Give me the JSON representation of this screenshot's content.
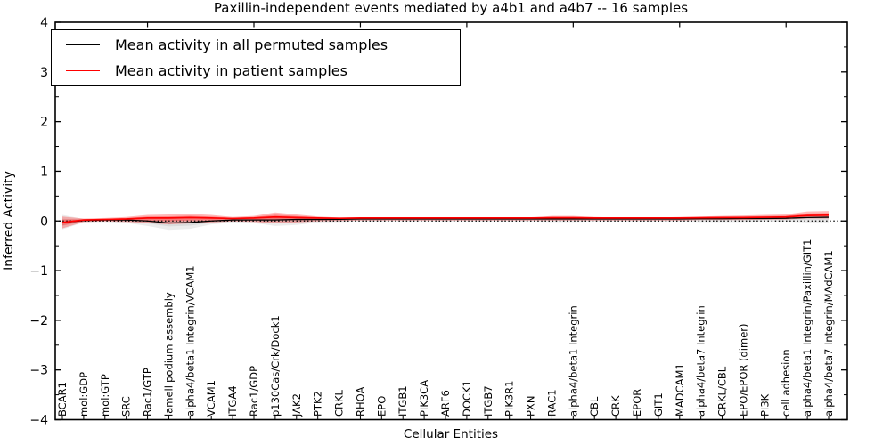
{
  "figure": {
    "title": "Paxillin-independent events mediated by a4b1 and a4b7 -- 16 samples",
    "xlabel": "Cellular Entities",
    "ylabel": "Inferred Activity"
  },
  "legend": {
    "items": [
      {
        "label": "Mean activity in all permuted samples",
        "color": "#000000"
      },
      {
        "label": "Mean activity in patient samples",
        "color": "#ff0000"
      }
    ]
  },
  "chart_data": {
    "type": "line",
    "title": "Paxillin-independent events mediated by a4b1 and a4b7 -- 16 samples",
    "xlabel": "Cellular Entities",
    "ylabel": "Inferred Activity",
    "ylim": [
      -4,
      4
    ],
    "yticks": [
      -4,
      -3,
      -2,
      -1,
      0,
      1,
      2,
      3,
      4
    ],
    "ytick_labels": [
      "−4",
      "−3",
      "−2",
      "−1",
      "0",
      "1",
      "2",
      "3",
      "4"
    ],
    "grid": false,
    "zero_line_style": "dotted",
    "legend_position": "upper left",
    "top_tick_indices": [
      4,
      9,
      14,
      19,
      24,
      29,
      34
    ],
    "categories": [
      "BCAR1",
      "mol:GDP",
      "mol:GTP",
      "SRC",
      "Rac1/GTP",
      "lamellipodium assembly",
      "alpha4/beta1 Integrin/VCAM1",
      "VCAM1",
      "ITGA4",
      "Rac1/GDP",
      "p130Cas/Crk/Dock1",
      "JAK2",
      "PTK2",
      "CRKL",
      "RHOA",
      "EPO",
      "ITGB1",
      "PIK3CA",
      "ARF6",
      "DOCK1",
      "ITGB7",
      "PIK3R1",
      "PXN",
      "RAC1",
      "alpha4/beta1 Integrin",
      "CBL",
      "CRK",
      "EPOR",
      "GIT1",
      "MADCAM1",
      "alpha4/beta7 Integrin",
      "CRKL/CBL",
      "EPO/EPOR (dimer)",
      "PI3K",
      "cell adhesion",
      "alpha4/beta1 Integrin/Paxillin/GIT1",
      "alpha4/beta7 Integrin/MAdCAM1"
    ],
    "series": [
      {
        "name": "Mean activity in all permuted samples",
        "color": "#000000",
        "values": [
          -0.03,
          0.01,
          0.02,
          0.02,
          0.0,
          -0.04,
          -0.03,
          0.0,
          0.02,
          0.02,
          0.02,
          0.03,
          0.03,
          0.035,
          0.04,
          0.04,
          0.04,
          0.04,
          0.04,
          0.04,
          0.04,
          0.04,
          0.04,
          0.04,
          0.04,
          0.04,
          0.04,
          0.04,
          0.04,
          0.04,
          0.045,
          0.045,
          0.05,
          0.05,
          0.055,
          0.07,
          0.075
        ]
      },
      {
        "name": "Mean activity in patient samples",
        "color": "#ff0000",
        "values": [
          -0.03,
          0.02,
          0.03,
          0.04,
          0.06,
          0.06,
          0.07,
          0.06,
          0.05,
          0.06,
          0.08,
          0.07,
          0.06,
          0.055,
          0.06,
          0.06,
          0.06,
          0.06,
          0.06,
          0.06,
          0.06,
          0.06,
          0.06,
          0.065,
          0.065,
          0.06,
          0.06,
          0.06,
          0.06,
          0.06,
          0.065,
          0.07,
          0.07,
          0.075,
          0.08,
          0.11,
          0.115
        ]
      }
    ],
    "bands": [
      {
        "name": "permuted samples range",
        "color_rgb": "#787878",
        "opacity": 0.14,
        "upper": [
          0.12,
          0.04,
          0.04,
          0.05,
          0.06,
          0.07,
          0.06,
          0.05,
          0.04,
          0.05,
          0.09,
          0.07,
          0.05,
          0.05,
          0.05,
          0.05,
          0.05,
          0.05,
          0.05,
          0.05,
          0.05,
          0.05,
          0.05,
          0.05,
          0.05,
          0.05,
          0.05,
          0.05,
          0.05,
          0.05,
          0.05,
          0.055,
          0.06,
          0.06,
          0.065,
          0.085,
          0.09
        ],
        "lower": [
          -0.17,
          -0.03,
          -0.02,
          -0.04,
          -0.1,
          -0.18,
          -0.16,
          -0.07,
          -0.03,
          -0.04,
          -0.1,
          -0.08,
          -0.03,
          -0.02,
          -0.01,
          -0.01,
          -0.01,
          -0.01,
          -0.01,
          -0.01,
          -0.01,
          -0.01,
          -0.01,
          -0.02,
          -0.02,
          -0.01,
          -0.01,
          -0.01,
          -0.01,
          -0.01,
          -0.02,
          -0.02,
          -0.02,
          -0.01,
          -0.01,
          -0.03,
          -0.03
        ]
      },
      {
        "name": "patient samples range",
        "color_rgb": "#ff0000",
        "opacity": 0.28,
        "upper": [
          0.09,
          0.05,
          0.06,
          0.08,
          0.12,
          0.13,
          0.14,
          0.12,
          0.08,
          0.1,
          0.17,
          0.13,
          0.09,
          0.07,
          0.07,
          0.07,
          0.07,
          0.07,
          0.07,
          0.07,
          0.07,
          0.07,
          0.07,
          0.1,
          0.1,
          0.08,
          0.07,
          0.07,
          0.07,
          0.08,
          0.09,
          0.1,
          0.11,
          0.12,
          0.13,
          0.19,
          0.2
        ],
        "lower": [
          -0.15,
          -0.02,
          -0.01,
          -0.02,
          -0.04,
          -0.07,
          -0.05,
          -0.03,
          -0.01,
          -0.02,
          -0.05,
          -0.03,
          -0.01,
          0.0,
          0.01,
          0.01,
          0.01,
          0.01,
          0.01,
          0.01,
          0.01,
          0.01,
          0.01,
          0.01,
          0.01,
          0.01,
          0.01,
          0.01,
          0.01,
          0.01,
          0.02,
          0.02,
          0.02,
          0.03,
          0.03,
          0.05,
          0.05
        ]
      }
    ]
  }
}
